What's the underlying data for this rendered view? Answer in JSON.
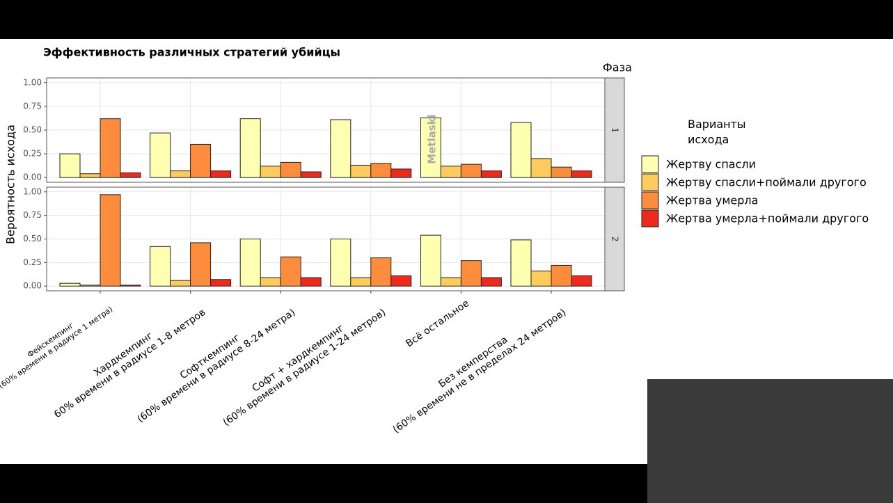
{
  "chart_data": {
    "type": "bar",
    "title": "Эффективность различных стратегий убийцы",
    "y_label": "Вероятность исхода",
    "facet_title": "Фаза",
    "facets": [
      "1",
      "2"
    ],
    "legend_title": "Варианты\nисхода",
    "watermark": "Metlaski",
    "categories": [
      "Фейскемпинг\n(60% времени в радиусе 1 метра)",
      "Хардкемпинг\n60% времени в радиусе 1-8 метров",
      "Софткемпинг\n(60% времени в радиусе 8-24 метра)",
      "Софт + хардкемпинг\n(60% времени в радиусе 1-24 метров)",
      "Всё остальное",
      "Без кемперства\n(60% времени не в пределах 24 метров)"
    ],
    "series": [
      {
        "name": "Жертву спасли",
        "color": "#ffffb2",
        "values": [
          [
            0.25,
            0.47,
            0.62,
            0.61,
            0.63,
            0.58
          ],
          [
            0.03,
            0.42,
            0.5,
            0.5,
            0.54,
            0.49
          ]
        ]
      },
      {
        "name": "Жертву спасли+поймали другого",
        "color": "#fecc5c",
        "values": [
          [
            0.04,
            0.07,
            0.12,
            0.13,
            0.12,
            0.2
          ],
          [
            0.01,
            0.06,
            0.09,
            0.09,
            0.09,
            0.16
          ]
        ]
      },
      {
        "name": "Жертва умерла",
        "color": "#fd8d3c",
        "values": [
          [
            0.62,
            0.35,
            0.16,
            0.15,
            0.14,
            0.11
          ],
          [
            0.97,
            0.46,
            0.31,
            0.3,
            0.27,
            0.22
          ]
        ]
      },
      {
        "name": "Жертва умерла+поймали другого",
        "color": "#ee2a1c",
        "values": [
          [
            0.05,
            0.07,
            0.06,
            0.09,
            0.07,
            0.07
          ],
          [
            0.01,
            0.07,
            0.09,
            0.11,
            0.09,
            0.11
          ]
        ]
      }
    ],
    "ylim": [
      -0.05,
      1.05
    ],
    "yticks": [
      {
        "value": 0,
        "label": "0.00"
      },
      {
        "value": 0.25,
        "label": "0.25"
      },
      {
        "value": 0.5,
        "label": "0.50"
      },
      {
        "value": 0.75,
        "label": "0.75"
      },
      {
        "value": 1,
        "label": "1.00"
      }
    ],
    "grid": true
  }
}
